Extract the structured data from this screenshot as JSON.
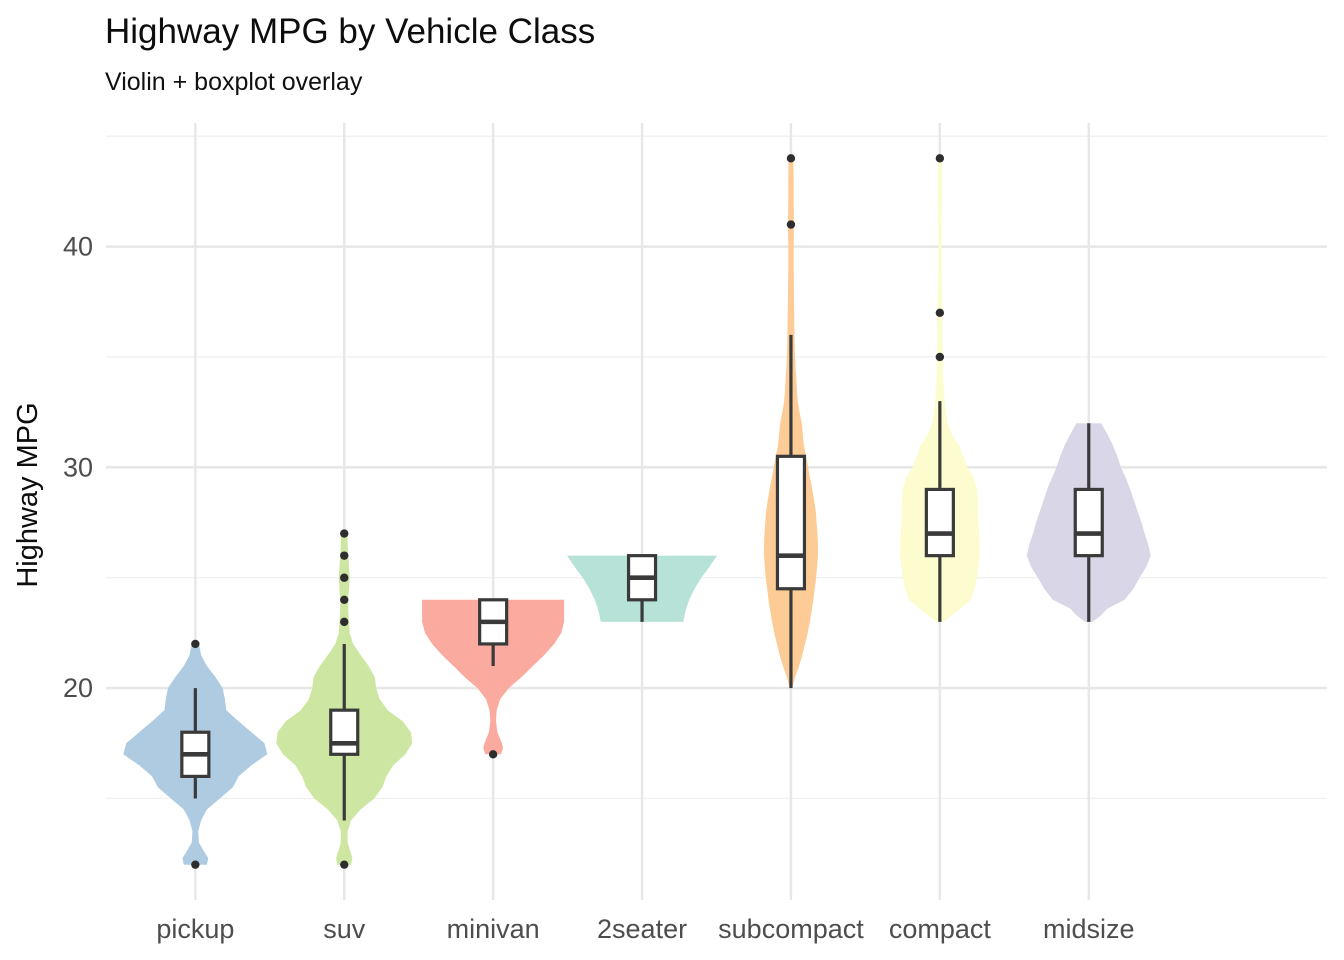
{
  "title": "Highway MPG by Vehicle Class",
  "subtitle": "Violin + boxplot overlay",
  "chart_data": {
    "type": "violin+boxplot",
    "title": "Highway MPG by Vehicle Class",
    "subtitle": "Violin + boxplot overlay",
    "xlabel": "",
    "ylabel": "Highway MPG",
    "ylim": [
      10.4,
      45.6
    ],
    "yticks_major": [
      20,
      30,
      40
    ],
    "yticks_minor": [
      15,
      25,
      35,
      45
    ],
    "grid": "horizontal major+minor, vertical major at each category; no axis lines or ticks",
    "legend": "none",
    "categories": [
      "pickup",
      "suv",
      "minivan",
      "2seater",
      "subcompact",
      "compact",
      "midsize"
    ],
    "theme": {
      "background": "#ffffff",
      "grid_major_color": "#e7e7e7",
      "grid_minor_color": "#f1f1f1",
      "axis_text_color": "#4d4d4d",
      "box_stroke_color": "#3a3a3a",
      "outlier_color": "#2e2e2e",
      "box_fill": "#ffffff"
    },
    "series": [
      {
        "label": "pickup",
        "fill": "#aecbe2",
        "box": {
          "whisker_low": 15,
          "q1": 16,
          "median": 17,
          "q3": 18,
          "whisker_high": 20
        },
        "outliers": [
          22,
          12
        ],
        "peak_halfwidth": 72,
        "violin": [
          [
            12,
            0.16
          ],
          [
            12.3,
            0.18
          ],
          [
            12.6,
            0.12
          ],
          [
            13,
            0.05
          ],
          [
            13.5,
            0.04
          ],
          [
            14,
            0.08
          ],
          [
            14.5,
            0.16
          ],
          [
            15,
            0.34
          ],
          [
            15.5,
            0.52
          ],
          [
            16,
            0.6
          ],
          [
            16.5,
            0.78
          ],
          [
            17,
            1.0
          ],
          [
            17.5,
            0.96
          ],
          [
            18,
            0.78
          ],
          [
            18.5,
            0.6
          ],
          [
            19,
            0.43
          ],
          [
            19.5,
            0.41
          ],
          [
            20,
            0.38
          ],
          [
            20.5,
            0.28
          ],
          [
            21,
            0.16
          ],
          [
            21.5,
            0.08
          ],
          [
            22,
            0.05
          ]
        ]
      },
      {
        "label": "suv",
        "fill": "#cde7a2",
        "box": {
          "whisker_low": 14,
          "q1": 17,
          "median": 17.5,
          "q3": 19,
          "whisker_high": 22
        },
        "outliers": [
          27,
          26,
          25,
          24,
          23,
          12
        ],
        "peak_halfwidth": 68,
        "violin": [
          [
            12,
            0.1
          ],
          [
            12.3,
            0.12
          ],
          [
            12.7,
            0.08
          ],
          [
            13,
            0.05
          ],
          [
            13.5,
            0.05
          ],
          [
            14,
            0.1
          ],
          [
            14.5,
            0.24
          ],
          [
            15,
            0.44
          ],
          [
            15.5,
            0.56
          ],
          [
            16,
            0.62
          ],
          [
            16.5,
            0.72
          ],
          [
            17,
            0.9
          ],
          [
            17.5,
            1.0
          ],
          [
            18,
            0.98
          ],
          [
            18.5,
            0.86
          ],
          [
            19,
            0.64
          ],
          [
            19.5,
            0.52
          ],
          [
            20,
            0.47
          ],
          [
            20.5,
            0.45
          ],
          [
            21,
            0.36
          ],
          [
            21.5,
            0.24
          ],
          [
            22,
            0.13
          ],
          [
            22.5,
            0.08
          ],
          [
            23,
            0.07
          ],
          [
            23.5,
            0.06
          ],
          [
            24,
            0.06
          ],
          [
            24.5,
            0.07
          ],
          [
            25,
            0.08
          ],
          [
            25.5,
            0.07
          ],
          [
            26,
            0.06
          ],
          [
            26.5,
            0.05
          ],
          [
            27,
            0.05
          ]
        ]
      },
      {
        "label": "minivan",
        "fill": "#fbaaa0",
        "box": {
          "whisker_low": 21,
          "q1": 22,
          "median": 23,
          "q3": 24,
          "whisker_high": 24
        },
        "outliers": [
          17
        ],
        "peak_halfwidth": 71,
        "violin": [
          [
            17,
            0.11
          ],
          [
            17.3,
            0.14
          ],
          [
            17.6,
            0.11
          ],
          [
            18,
            0.06
          ],
          [
            18.5,
            0.04
          ],
          [
            19,
            0.05
          ],
          [
            19.5,
            0.1
          ],
          [
            20,
            0.22
          ],
          [
            20.5,
            0.4
          ],
          [
            21,
            0.56
          ],
          [
            21.5,
            0.72
          ],
          [
            22,
            0.86
          ],
          [
            22.5,
            0.96
          ],
          [
            23,
            1.0
          ],
          [
            23.5,
            1.0
          ],
          [
            24,
            1.0
          ]
        ]
      },
      {
        "label": "2seater",
        "fill": "#b7e2d8",
        "box": {
          "whisker_low": 23,
          "q1": 24,
          "median": 25,
          "q3": 26,
          "whisker_high": 26
        },
        "outliers": [],
        "peak_halfwidth": 75,
        "violin": [
          [
            23,
            0.55
          ],
          [
            23.5,
            0.58
          ],
          [
            24,
            0.63
          ],
          [
            24.5,
            0.7
          ],
          [
            25,
            0.79
          ],
          [
            25.5,
            0.9
          ],
          [
            26,
            1.0
          ]
        ]
      },
      {
        "label": "subcompact",
        "fill": "#fdcb96",
        "box": {
          "whisker_low": 20,
          "q1": 24.5,
          "median": 26,
          "q3": 30.5,
          "whisker_high": 36
        },
        "outliers": [
          44,
          41
        ],
        "peak_halfwidth": 27,
        "violin": [
          [
            20,
            0.05
          ],
          [
            20.5,
            0.15
          ],
          [
            21,
            0.3
          ],
          [
            21.5,
            0.42
          ],
          [
            22,
            0.52
          ],
          [
            22.5,
            0.62
          ],
          [
            23,
            0.7
          ],
          [
            23.5,
            0.77
          ],
          [
            24,
            0.83
          ],
          [
            24.5,
            0.88
          ],
          [
            25,
            0.93
          ],
          [
            25.5,
            0.97
          ],
          [
            26,
            1.0
          ],
          [
            26.5,
            1.0
          ],
          [
            27,
            0.98
          ],
          [
            27.5,
            0.95
          ],
          [
            28,
            0.92
          ],
          [
            28.5,
            0.86
          ],
          [
            29,
            0.79
          ],
          [
            29.5,
            0.71
          ],
          [
            30,
            0.64
          ],
          [
            30.5,
            0.56
          ],
          [
            31,
            0.48
          ],
          [
            31.5,
            0.44
          ],
          [
            32,
            0.4
          ],
          [
            32.5,
            0.32
          ],
          [
            33,
            0.25
          ],
          [
            33.5,
            0.22
          ],
          [
            34,
            0.2
          ],
          [
            34.5,
            0.17
          ],
          [
            35,
            0.15
          ],
          [
            35.5,
            0.14
          ],
          [
            36,
            0.13
          ],
          [
            37,
            0.12
          ],
          [
            38,
            0.11
          ],
          [
            39,
            0.1
          ],
          [
            40,
            0.1
          ],
          [
            41,
            0.11
          ],
          [
            42,
            0.1
          ],
          [
            43,
            0.1
          ],
          [
            44,
            0.09
          ]
        ]
      },
      {
        "label": "compact",
        "fill": "#fcfcce",
        "box": {
          "whisker_low": 23,
          "q1": 26,
          "median": 27,
          "q3": 29,
          "whisker_high": 33
        },
        "outliers": [
          44,
          37,
          35
        ],
        "peak_halfwidth": 40,
        "violin": [
          [
            23,
            0.08
          ],
          [
            23.5,
            0.45
          ],
          [
            24,
            0.77
          ],
          [
            24.5,
            0.87
          ],
          [
            25,
            0.93
          ],
          [
            25.5,
            0.96
          ],
          [
            26,
            1.0
          ],
          [
            26.5,
            0.99
          ],
          [
            27,
            0.98
          ],
          [
            27.5,
            0.96
          ],
          [
            28,
            0.95
          ],
          [
            28.5,
            0.95
          ],
          [
            29,
            0.93
          ],
          [
            29.5,
            0.85
          ],
          [
            30,
            0.69
          ],
          [
            30.5,
            0.58
          ],
          [
            31,
            0.48
          ],
          [
            31.5,
            0.3
          ],
          [
            32,
            0.19
          ],
          [
            32.5,
            0.15
          ],
          [
            33,
            0.12
          ],
          [
            33.5,
            0.1
          ],
          [
            34,
            0.08
          ],
          [
            35,
            0.075
          ],
          [
            36,
            0.07
          ],
          [
            37,
            0.065
          ],
          [
            38,
            0.05
          ],
          [
            39,
            0.04
          ],
          [
            40,
            0.04
          ],
          [
            41,
            0.04
          ],
          [
            42,
            0.05
          ],
          [
            43,
            0.055
          ],
          [
            44,
            0.05
          ]
        ]
      },
      {
        "label": "midsize",
        "fill": "#d9d7e7",
        "box": {
          "whisker_low": 23,
          "q1": 26,
          "median": 27,
          "q3": 29,
          "whisker_high": 32
        },
        "outliers": [],
        "peak_halfwidth": 62,
        "violin": [
          [
            23,
            0.06
          ],
          [
            23.3,
            0.2
          ],
          [
            23.6,
            0.3
          ],
          [
            24,
            0.58
          ],
          [
            24.5,
            0.72
          ],
          [
            25,
            0.82
          ],
          [
            25.5,
            0.93
          ],
          [
            26,
            1.0
          ],
          [
            26.5,
            0.96
          ],
          [
            27,
            0.9
          ],
          [
            27.5,
            0.85
          ],
          [
            28,
            0.79
          ],
          [
            28.5,
            0.73
          ],
          [
            29,
            0.67
          ],
          [
            29.5,
            0.6
          ],
          [
            30,
            0.52
          ],
          [
            30.5,
            0.46
          ],
          [
            31,
            0.39
          ],
          [
            31.5,
            0.3
          ],
          [
            32,
            0.2
          ]
        ]
      }
    ]
  }
}
